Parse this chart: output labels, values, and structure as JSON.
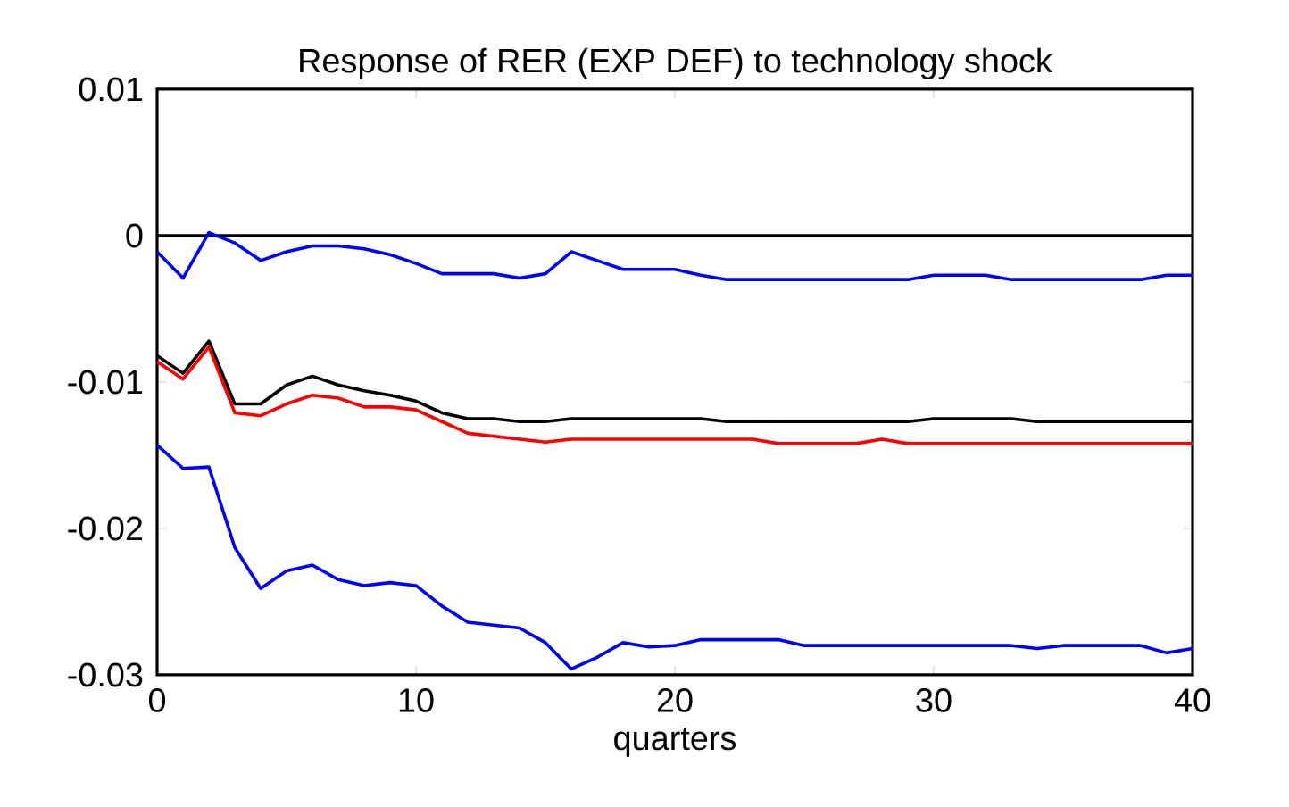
{
  "chart_data": {
    "type": "line",
    "title": "Response of RER (EXP DEF) to technology shock",
    "xlabel": "quarters",
    "x": [
      0,
      1,
      2,
      3,
      4,
      5,
      6,
      7,
      8,
      9,
      10,
      11,
      12,
      13,
      14,
      15,
      16,
      17,
      18,
      19,
      20,
      21,
      22,
      23,
      24,
      25,
      26,
      27,
      28,
      29,
      30,
      31,
      32,
      33,
      34,
      35,
      36,
      37,
      38,
      39,
      40
    ],
    "series": [
      {
        "color": "#0000ff",
        "values": [
          -0.0011,
          -0.0029,
          0.0002,
          -0.0005,
          -0.0017,
          -0.0011,
          -0.0007,
          -0.0007,
          -0.0009,
          -0.0013,
          -0.0019,
          -0.0026,
          -0.0026,
          -0.0026,
          -0.0029,
          -0.0026,
          -0.0011,
          -0.0017,
          -0.0023,
          -0.0023,
          -0.0023,
          -0.0027,
          -0.003,
          -0.003,
          -0.003,
          -0.003,
          -0.003,
          -0.003,
          -0.003,
          -0.003,
          -0.0027,
          -0.0027,
          -0.0027,
          -0.003,
          -0.003,
          -0.003,
          -0.003,
          -0.003,
          -0.003,
          -0.0027,
          -0.0027
        ]
      },
      {
        "color": "#000000",
        "values": [
          -0.0082,
          -0.0094,
          -0.0072,
          -0.0115,
          -0.0115,
          -0.0102,
          -0.0096,
          -0.0102,
          -0.0106,
          -0.0109,
          -0.0113,
          -0.0121,
          -0.0125,
          -0.0125,
          -0.0127,
          -0.0127,
          -0.0125,
          -0.0125,
          -0.0125,
          -0.0125,
          -0.0125,
          -0.0125,
          -0.0127,
          -0.0127,
          -0.0127,
          -0.0127,
          -0.0127,
          -0.0127,
          -0.0127,
          -0.0127,
          -0.0125,
          -0.0125,
          -0.0125,
          -0.0125,
          -0.0127,
          -0.0127,
          -0.0127,
          -0.0127,
          -0.0127,
          -0.0127,
          -0.0127
        ]
      },
      {
        "color": "#ff0000",
        "values": [
          -0.0086,
          -0.0098,
          -0.0076,
          -0.0121,
          -0.0123,
          -0.0115,
          -0.0109,
          -0.0111,
          -0.0117,
          -0.0117,
          -0.0119,
          -0.0127,
          -0.0135,
          -0.0137,
          -0.0139,
          -0.0141,
          -0.0139,
          -0.0139,
          -0.0139,
          -0.0139,
          -0.0139,
          -0.0139,
          -0.0139,
          -0.0139,
          -0.0142,
          -0.0142,
          -0.0142,
          -0.0142,
          -0.0139,
          -0.0142,
          -0.0142,
          -0.0142,
          -0.0142,
          -0.0142,
          -0.0142,
          -0.0142,
          -0.0142,
          -0.0142,
          -0.0142,
          -0.0142,
          -0.0142
        ]
      },
      {
        "color": "#0000ff",
        "values": [
          -0.0143,
          -0.0159,
          -0.0158,
          -0.0213,
          -0.0241,
          -0.0229,
          -0.0225,
          -0.0235,
          -0.0239,
          -0.0237,
          -0.0239,
          -0.0253,
          -0.0264,
          -0.0266,
          -0.0268,
          -0.0278,
          -0.0296,
          -0.0288,
          -0.0278,
          -0.0281,
          -0.028,
          -0.0276,
          -0.0276,
          -0.0276,
          -0.0276,
          -0.028,
          -0.028,
          -0.028,
          -0.028,
          -0.028,
          -0.028,
          -0.028,
          -0.028,
          -0.028,
          -0.0282,
          -0.028,
          -0.028,
          -0.028,
          -0.028,
          -0.0285,
          -0.0282
        ]
      }
    ],
    "ref_lines": [
      {
        "axis": "y",
        "value": 0,
        "color": "#000000"
      }
    ],
    "xlim": [
      0,
      40
    ],
    "ylim": [
      -0.03,
      0.01
    ],
    "xticks": [
      0,
      10,
      20,
      30,
      40
    ],
    "yticks": [
      -0.03,
      -0.02,
      -0.01,
      0,
      0.01
    ],
    "marker": "none",
    "line_style": "solid"
  }
}
